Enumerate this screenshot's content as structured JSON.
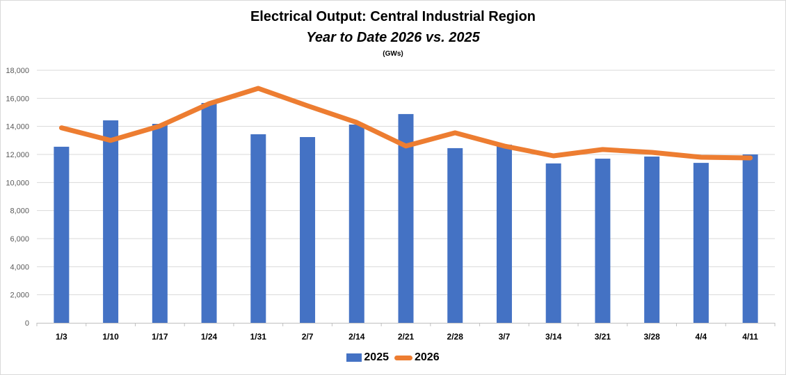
{
  "chart_data": {
    "type": "bar",
    "title": "Electrical Output:  Central Industrial Region",
    "subtitle": "Year to Date 2026 vs. 2025",
    "unit_label": "(GWs)",
    "xlabel": "",
    "ylabel": "",
    "ylim": [
      0,
      18000
    ],
    "yticks": [
      0,
      2000,
      4000,
      6000,
      8000,
      10000,
      12000,
      14000,
      16000,
      18000
    ],
    "ytick_labels": [
      "0",
      "2,000",
      "4,000",
      "6,000",
      "8,000",
      "10,000",
      "12,000",
      "14,000",
      "16,000",
      "18,000"
    ],
    "grid": true,
    "legend_position": "bottom",
    "categories": [
      "1/3",
      "1/10",
      "1/17",
      "1/24",
      "1/31",
      "2/7",
      "2/14",
      "2/21",
      "2/28",
      "3/7",
      "3/14",
      "3/21",
      "3/28",
      "4/4",
      "4/11"
    ],
    "series": [
      {
        "name": "2025",
        "kind": "bar",
        "color": "#4472C4",
        "values": [
          12550,
          14430,
          14180,
          15670,
          13440,
          13240,
          14130,
          14880,
          12450,
          12700,
          11360,
          11700,
          11850,
          11400,
          12000
        ]
      },
      {
        "name": "2026",
        "kind": "line",
        "color": "#ED7D31",
        "values": [
          13900,
          13000,
          14030,
          15620,
          16710,
          15470,
          14280,
          12600,
          13540,
          12600,
          11900,
          12350,
          12150,
          11800,
          11750
        ]
      }
    ]
  }
}
